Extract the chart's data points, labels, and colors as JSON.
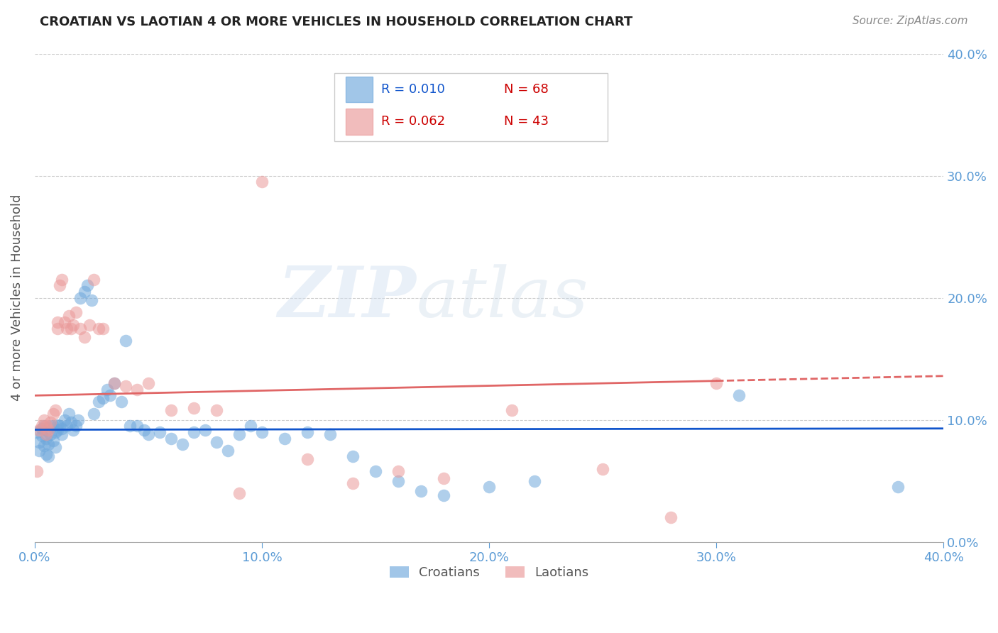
{
  "title": "CROATIAN VS LAOTIAN 4 OR MORE VEHICLES IN HOUSEHOLD CORRELATION CHART",
  "source": "Source: ZipAtlas.com",
  "ylabel": "4 or more Vehicles in Household",
  "watermark_zip": "ZIP",
  "watermark_atlas": "atlas",
  "xlim": [
    0.0,
    0.4
  ],
  "ylim": [
    0.0,
    0.4
  ],
  "xticks": [
    0.0,
    0.1,
    0.2,
    0.3,
    0.4
  ],
  "yticks": [
    0.0,
    0.1,
    0.2,
    0.3,
    0.4
  ],
  "xticklabels": [
    "0.0%",
    "10.0%",
    "20.0%",
    "30.0%",
    "40.0%"
  ],
  "yticklabels": [
    "0.0%",
    "10.0%",
    "20.0%",
    "30.0%",
    "40.0%"
  ],
  "croatian_color": "#6fa8dc",
  "laotian_color": "#ea9999",
  "trendline_croatian_color": "#1155cc",
  "trendline_laotian_color": "#e06666",
  "legend_R_croatian": "R = 0.010",
  "legend_N_croatian": "N = 68",
  "legend_R_laotian": "R = 0.062",
  "legend_N_laotian": "N = 43",
  "croatian_x": [
    0.001,
    0.002,
    0.002,
    0.003,
    0.003,
    0.004,
    0.004,
    0.005,
    0.005,
    0.005,
    0.006,
    0.006,
    0.007,
    0.007,
    0.008,
    0.008,
    0.009,
    0.009,
    0.01,
    0.01,
    0.011,
    0.012,
    0.012,
    0.013,
    0.014,
    0.015,
    0.016,
    0.017,
    0.018,
    0.019,
    0.02,
    0.022,
    0.023,
    0.025,
    0.026,
    0.028,
    0.03,
    0.032,
    0.033,
    0.035,
    0.038,
    0.04,
    0.042,
    0.045,
    0.048,
    0.05,
    0.055,
    0.06,
    0.065,
    0.07,
    0.075,
    0.08,
    0.085,
    0.09,
    0.095,
    0.1,
    0.11,
    0.12,
    0.13,
    0.14,
    0.15,
    0.16,
    0.17,
    0.18,
    0.2,
    0.22,
    0.31,
    0.38
  ],
  "croatian_y": [
    0.09,
    0.082,
    0.075,
    0.093,
    0.087,
    0.079,
    0.095,
    0.072,
    0.085,
    0.092,
    0.08,
    0.07,
    0.095,
    0.088,
    0.083,
    0.095,
    0.09,
    0.078,
    0.092,
    0.096,
    0.095,
    0.088,
    0.093,
    0.1,
    0.095,
    0.105,
    0.098,
    0.092,
    0.095,
    0.1,
    0.2,
    0.205,
    0.21,
    0.198,
    0.105,
    0.115,
    0.118,
    0.125,
    0.12,
    0.13,
    0.115,
    0.165,
    0.095,
    0.095,
    0.092,
    0.088,
    0.09,
    0.085,
    0.08,
    0.09,
    0.092,
    0.082,
    0.075,
    0.088,
    0.095,
    0.09,
    0.085,
    0.09,
    0.088,
    0.07,
    0.058,
    0.05,
    0.042,
    0.038,
    0.045,
    0.05,
    0.12,
    0.045
  ],
  "laotian_x": [
    0.001,
    0.002,
    0.003,
    0.004,
    0.005,
    0.005,
    0.006,
    0.007,
    0.008,
    0.009,
    0.01,
    0.01,
    0.011,
    0.012,
    0.013,
    0.014,
    0.015,
    0.016,
    0.017,
    0.018,
    0.02,
    0.022,
    0.024,
    0.026,
    0.028,
    0.03,
    0.035,
    0.04,
    0.045,
    0.05,
    0.06,
    0.07,
    0.08,
    0.09,
    0.1,
    0.12,
    0.14,
    0.16,
    0.18,
    0.21,
    0.25,
    0.28,
    0.3
  ],
  "laotian_y": [
    0.058,
    0.092,
    0.095,
    0.1,
    0.088,
    0.095,
    0.092,
    0.098,
    0.105,
    0.108,
    0.175,
    0.18,
    0.21,
    0.215,
    0.18,
    0.175,
    0.185,
    0.175,
    0.178,
    0.188,
    0.175,
    0.168,
    0.178,
    0.215,
    0.175,
    0.175,
    0.13,
    0.128,
    0.125,
    0.13,
    0.108,
    0.11,
    0.108,
    0.04,
    0.295,
    0.068,
    0.048,
    0.058,
    0.052,
    0.108,
    0.06,
    0.02,
    0.13
  ]
}
